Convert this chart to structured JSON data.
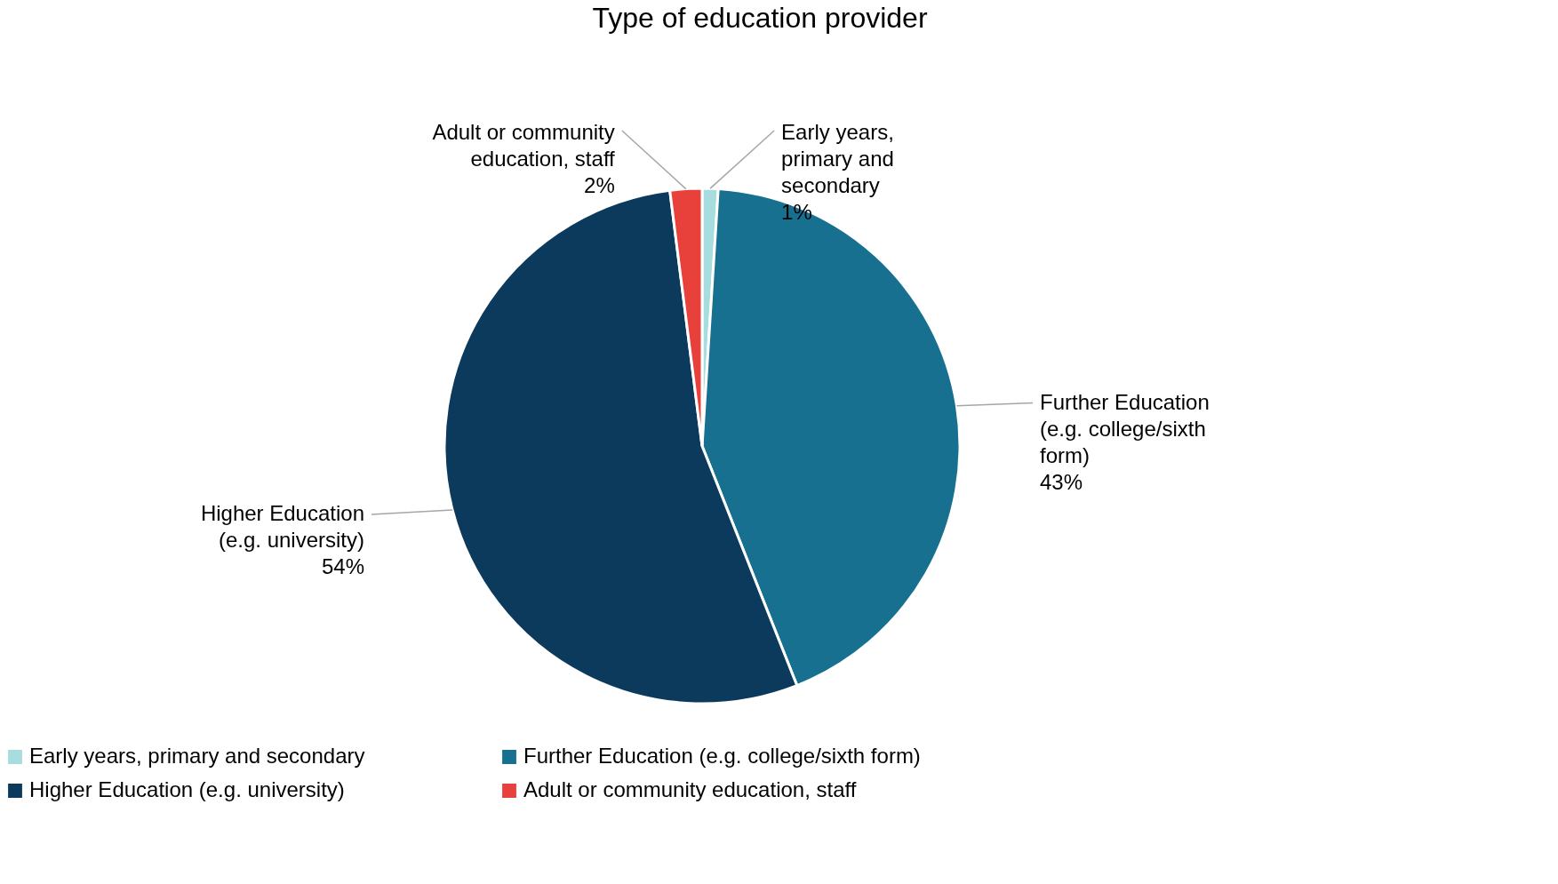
{
  "chart_data": {
    "type": "pie",
    "title": "Type of education provider",
    "categories": [
      "Early years, primary and secondary",
      "Further Education (e.g. college/sixth form)",
      "Higher Education (e.g. university)",
      "Adult or community education, staff"
    ],
    "values": [
      1,
      43,
      54,
      2
    ],
    "colors": [
      "#a8dde0",
      "#17708f",
      "#0b3a5c",
      "#e8413c"
    ],
    "value_labels": [
      "1%",
      "43%",
      "54%",
      "2%"
    ],
    "legend": "bottom"
  }
}
